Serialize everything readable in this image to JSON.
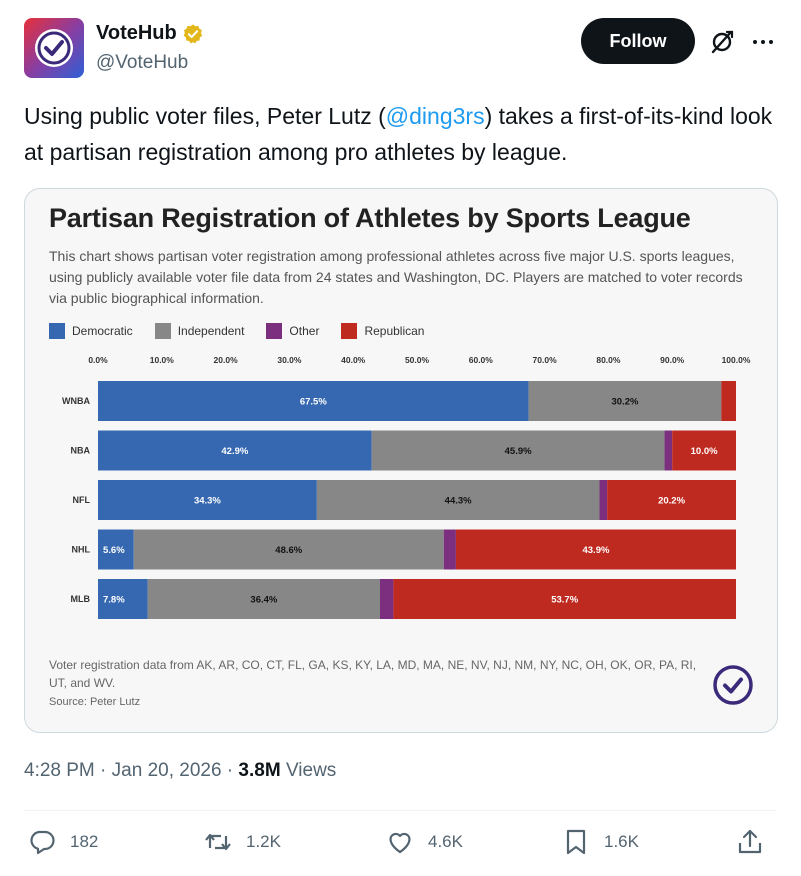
{
  "account": {
    "display_name": "VoteHub",
    "handle": "@VoteHub",
    "follow_label": "Follow"
  },
  "tweet": {
    "text_before": "Using public voter files, Peter Lutz (",
    "mention": "@ding3rs",
    "text_after": ") takes a first-of-its-kind look at partisan registration among pro athletes by league."
  },
  "card": {
    "title": "Partisan Registration of Athletes by Sports League",
    "description": "This chart shows partisan voter registration among professional athletes across five major U.S. sports leagues, using publicly available voter file data from 24 states and Washington, DC. Players are matched to voter records via public biographical information.",
    "footnote": "Voter registration data from AK, AR, CO, CT, FL, GA, KS, KY, LA, MD, MA, NE, NV, NJ, NM, NY, NC, OH, OK, OR, PA, RI, UT, and WV.",
    "source": "Source: Peter Lutz"
  },
  "chart_data": {
    "type": "bar",
    "orientation": "horizontal-stacked",
    "title": "Partisan Registration of Athletes by Sports League",
    "categories": [
      "WNBA",
      "NBA",
      "NFL",
      "NHL",
      "MLB"
    ],
    "x_ticks": [
      "0.0%",
      "10.0%",
      "20.0%",
      "30.0%",
      "40.0%",
      "50.0%",
      "60.0%",
      "70.0%",
      "80.0%",
      "90.0%",
      "100.0%"
    ],
    "xlim": [
      0,
      100
    ],
    "legend_position": "top-left",
    "series": [
      {
        "name": "Democratic",
        "color": "#3568b0",
        "values": [
          67.5,
          42.9,
          34.3,
          5.6,
          7.8
        ],
        "labels": [
          "67.5%",
          "42.9%",
          "34.3%",
          "5.6%",
          "7.8%"
        ]
      },
      {
        "name": "Independent",
        "color": "#878787",
        "values": [
          30.2,
          45.9,
          44.3,
          48.6,
          36.4
        ],
        "labels": [
          "30.2%",
          "45.9%",
          "44.3%",
          "48.6%",
          "36.4%"
        ]
      },
      {
        "name": "Other",
        "color": "#7b2f7e",
        "values": [
          0.0,
          1.2,
          1.2,
          1.9,
          2.1
        ],
        "labels": [
          "",
          "",
          "",
          "",
          ""
        ]
      },
      {
        "name": "Republican",
        "color": "#bf2a20",
        "values": [
          2.3,
          10.0,
          20.2,
          43.9,
          53.7
        ],
        "labels": [
          "",
          "10.0%",
          "20.2%",
          "43.9%",
          "53.7%"
        ]
      }
    ]
  },
  "meta": {
    "time": "4:28 PM",
    "sep1": " · ",
    "date": "Jan 20, 2026",
    "sep2": " · ",
    "views_count": "3.8M",
    "views_label": " Views"
  },
  "actions": {
    "replies": "182",
    "reposts": "1.2K",
    "likes": "4.6K",
    "bookmarks": "1.6K"
  },
  "icons": {
    "reply": "reply-icon",
    "repost": "repost-icon",
    "like": "heart-icon",
    "bookmark": "bookmark-icon",
    "share": "share-icon",
    "grok": "grok-icon",
    "more": "more-icon"
  },
  "colors": {
    "accent": "#1d9bf0",
    "verified_gold": "#e2b719",
    "brand_purple": "#3b2a7a"
  }
}
